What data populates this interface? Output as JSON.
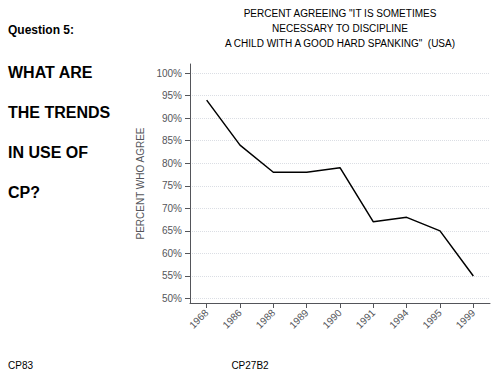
{
  "chart_data": {
    "type": "line",
    "title": "PERCENT AGREEING \"IT IS SOMETIMES\nNECESSARY TO DISCIPLINE\nA CHILD WITH A GOOD HARD SPANKING\"  (USA)",
    "ylabel": "PERCENT WHO AGREE",
    "categories": [
      "1968",
      "1986",
      "1988",
      "1989",
      "1990",
      "1991",
      "1994",
      "1995",
      "1999"
    ],
    "values": [
      94,
      84,
      78,
      78,
      79,
      67,
      68,
      65,
      55
    ],
    "color": "#000000",
    "ylim": [
      49,
      102
    ],
    "yticks": [
      {
        "value": 50,
        "label": "50%"
      },
      {
        "value": 55,
        "label": "55%"
      },
      {
        "value": 60,
        "label": "60%"
      },
      {
        "value": 65,
        "label": "65%"
      },
      {
        "value": 70,
        "label": "70%"
      },
      {
        "value": 75,
        "label": "75%"
      },
      {
        "value": 80,
        "label": "80%"
      },
      {
        "value": 85,
        "label": "85%"
      },
      {
        "value": 90,
        "label": "90%"
      },
      {
        "value": 95,
        "label": "95%"
      },
      {
        "value": 100,
        "label": "100%"
      }
    ],
    "grid": true,
    "annotations": [
      "Question 5:",
      "WHAT ARE",
      "THE TRENDS",
      "IN USE OF",
      "CP?",
      "CP83",
      "CP27B2"
    ]
  }
}
